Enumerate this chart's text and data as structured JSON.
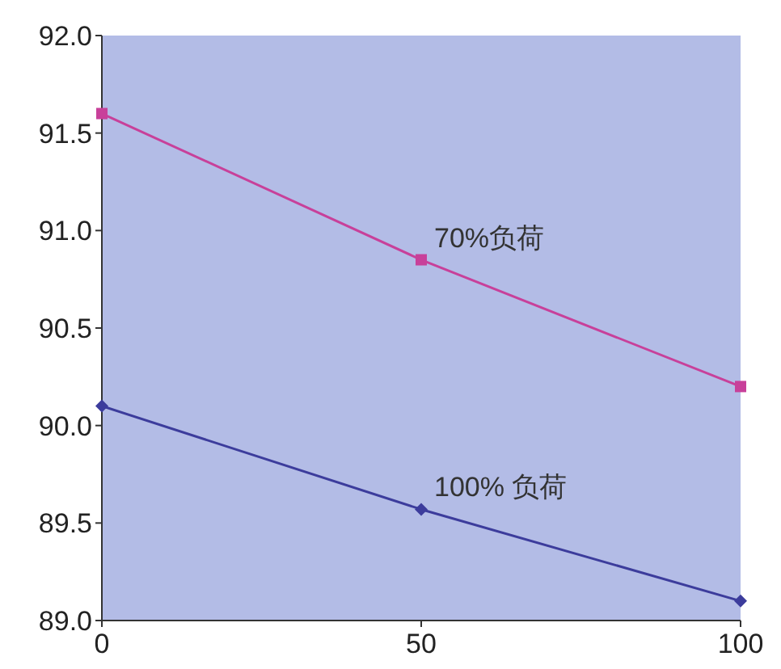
{
  "chart_data": {
    "type": "line",
    "x": [
      0,
      50,
      100
    ],
    "series": [
      {
        "name": "70%负荷",
        "color": "#c8409a",
        "marker": "square",
        "values": [
          91.6,
          90.85,
          90.2
        ]
      },
      {
        "name": "100% 负荷",
        "color": "#3c3c9c",
        "marker": "diamond",
        "values": [
          90.1,
          89.57,
          89.1
        ]
      }
    ],
    "xlim": [
      0,
      100
    ],
    "xticks": [
      0,
      50,
      100
    ],
    "ylim": [
      89,
      92
    ],
    "yticks": [
      {
        "value": 89,
        "label": "89.0"
      },
      {
        "value": 89.5,
        "label": "89.5"
      },
      {
        "value": 90,
        "label": "90.0"
      },
      {
        "value": 90.5,
        "label": "90.5"
      },
      {
        "value": 91,
        "label": "91.0"
      },
      {
        "value": 91.5,
        "label": "91.5"
      },
      {
        "value": 92,
        "label": "92.0"
      }
    ],
    "grid": false
  }
}
